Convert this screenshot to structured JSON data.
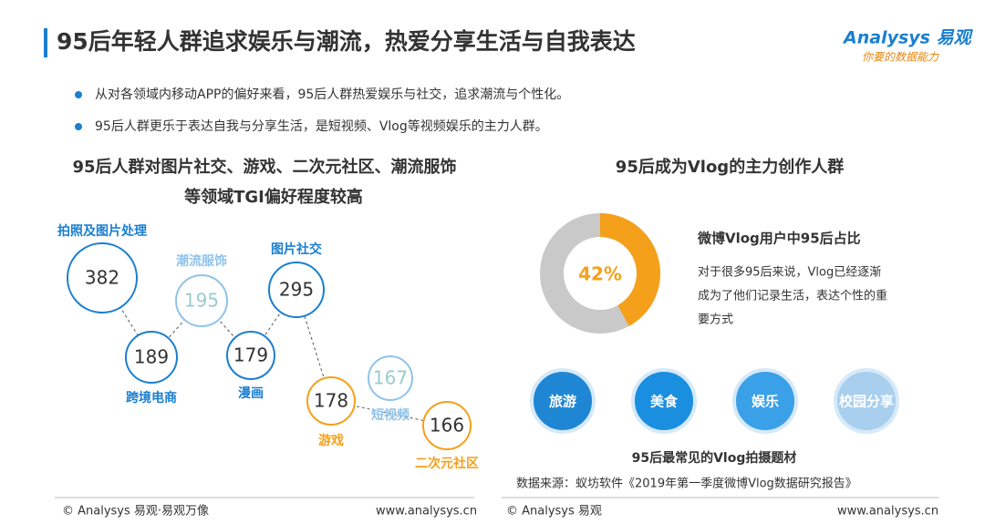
{
  "header": {
    "title": "95后年轻人群追求娱乐与潮流，热爱分享生活与自我表达",
    "logo": "Analysys 易观",
    "slogan": "你要的数据能力"
  },
  "bullets": [
    "从对各领域内移动APP的偏好来看，95后人群热爱娱乐与社交，追求潮流与个性化。",
    "95后人群更乐于表达自我与分享生活，是短视频、Vlog等视频娱乐的主力人群。"
  ],
  "left": {
    "heading": [
      "95后人群对图片社交、游戏、二次元社区、潮流服饰",
      "等领域TGI偏好程度较高"
    ],
    "nodes": [
      {
        "label": "拍照及图片处理",
        "value": 382
      },
      {
        "label": "潮流服饰",
        "value": 195
      },
      {
        "label": "图片社交",
        "value": 295
      },
      {
        "label": "跨境电商",
        "value": 189
      },
      {
        "label": "漫画",
        "value": 179
      },
      {
        "label": "游戏",
        "value": 178
      },
      {
        "label": "短视频",
        "value": 167
      },
      {
        "label": "二次元社区",
        "value": 166
      }
    ]
  },
  "right": {
    "heading": "95后成为Vlog的主力创作人群",
    "donut": {
      "value": 42,
      "label": "42%"
    },
    "donut_title": "微博Vlog用户中95后占比",
    "paragraph": [
      "对于很多95后来说，Vlog已经逐渐",
      "成为了他们记录生活，表达个性的重",
      "要方式"
    ],
    "topics": [
      "旅游",
      "美食",
      "娱乐",
      "校园分享"
    ],
    "caption": "95后最常见的Vlog拍摄题材",
    "source": "数据来源：蚁坊软件《2019年第一季度微博Vlog数据研究报告》"
  },
  "footer": {
    "left_copyright": "© Analysys 易观·易观万像",
    "left_url": "www.analysys.cn",
    "right_copyright": "© Analysys 易观",
    "right_url": "www.analysys.cn"
  }
}
